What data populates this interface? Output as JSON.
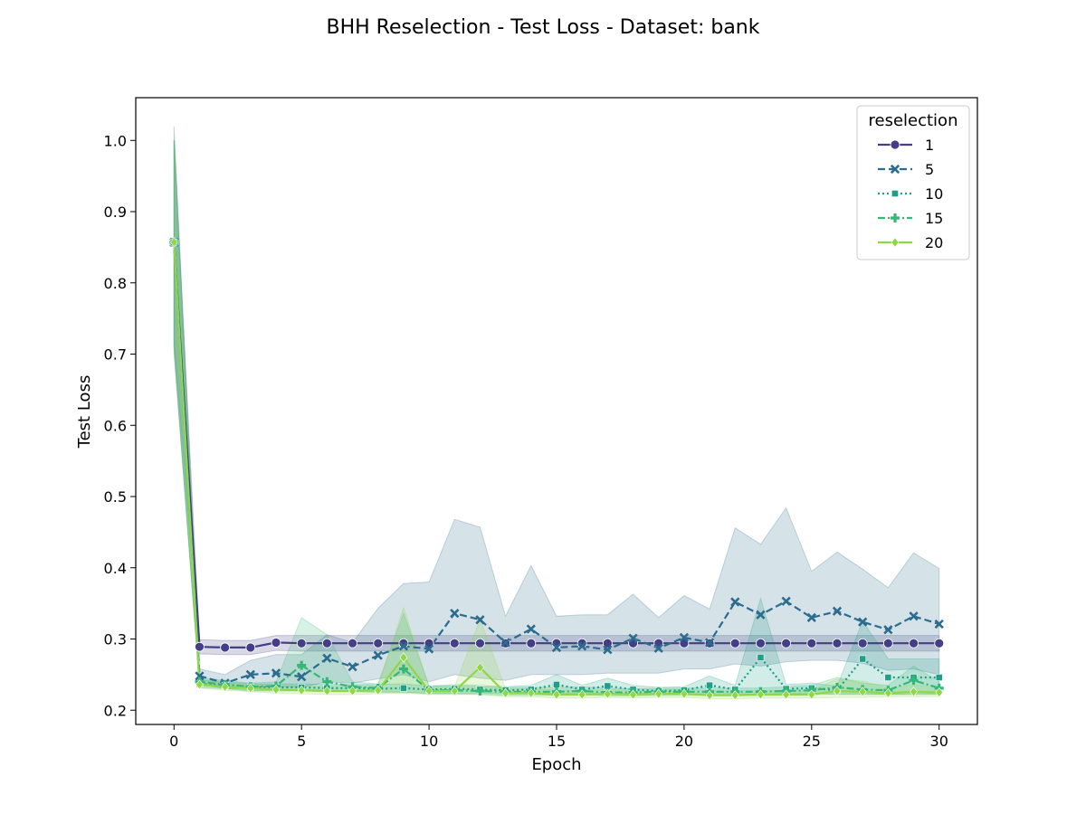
{
  "chart_data": {
    "type": "line",
    "title": "BHH Reselection - Test Loss - Dataset: bank",
    "xlabel": "Epoch",
    "ylabel": "Test Loss",
    "xlim": [
      -1.5,
      31.5
    ],
    "ylim": [
      0.18,
      1.06
    ],
    "xticks": [
      0,
      5,
      10,
      15,
      20,
      25,
      30
    ],
    "yticks": [
      0.2,
      0.3,
      0.4,
      0.5,
      0.6,
      0.7,
      0.8,
      0.9,
      1.0
    ],
    "ytick_labels": [
      "0.2",
      "0.3",
      "0.4",
      "0.5",
      "0.6",
      "0.7",
      "0.8",
      "0.9",
      "1.0"
    ],
    "grid": false,
    "legend": {
      "title": "reselection",
      "placement": "top-right"
    },
    "x": [
      0,
      1,
      2,
      3,
      4,
      5,
      6,
      7,
      8,
      9,
      10,
      11,
      12,
      13,
      14,
      15,
      16,
      17,
      18,
      19,
      20,
      21,
      22,
      23,
      24,
      25,
      26,
      27,
      28,
      29,
      30
    ],
    "series": [
      {
        "name": "1",
        "color": "#433e85",
        "dash": "solid",
        "marker": "circle",
        "values": [
          0.857,
          0.289,
          0.288,
          0.288,
          0.295,
          0.294,
          0.294,
          0.294,
          0.294,
          0.294,
          0.294,
          0.294,
          0.294,
          0.294,
          0.294,
          0.294,
          0.294,
          0.294,
          0.294,
          0.294,
          0.294,
          0.294,
          0.294,
          0.294,
          0.294,
          0.294,
          0.294,
          0.294,
          0.294,
          0.294,
          0.294
        ],
        "lower": [
          0.72,
          0.279,
          0.278,
          0.278,
          0.284,
          0.283,
          0.283,
          0.283,
          0.283,
          0.283,
          0.283,
          0.283,
          0.283,
          0.283,
          0.283,
          0.283,
          0.283,
          0.283,
          0.283,
          0.283,
          0.283,
          0.283,
          0.283,
          0.283,
          0.283,
          0.283,
          0.283,
          0.283,
          0.283,
          0.283,
          0.283
        ],
        "upper": [
          1.0,
          0.299,
          0.298,
          0.298,
          0.305,
          0.305,
          0.305,
          0.305,
          0.305,
          0.305,
          0.305,
          0.305,
          0.305,
          0.305,
          0.305,
          0.305,
          0.305,
          0.305,
          0.305,
          0.305,
          0.305,
          0.305,
          0.305,
          0.305,
          0.305,
          0.305,
          0.305,
          0.305,
          0.305,
          0.305,
          0.305
        ]
      },
      {
        "name": "5",
        "color": "#2c6c8e",
        "dash": "8,4",
        "marker": "x",
        "values": [
          0.857,
          0.248,
          0.238,
          0.25,
          0.252,
          0.247,
          0.273,
          0.261,
          0.277,
          0.29,
          0.286,
          0.336,
          0.327,
          0.295,
          0.314,
          0.288,
          0.29,
          0.285,
          0.301,
          0.287,
          0.302,
          0.295,
          0.352,
          0.334,
          0.353,
          0.33,
          0.339,
          0.324,
          0.313,
          0.332,
          0.321
        ],
        "lower": [
          0.7,
          0.238,
          0.23,
          0.232,
          0.233,
          0.232,
          0.24,
          0.238,
          0.244,
          0.25,
          0.24,
          0.25,
          0.245,
          0.242,
          0.25,
          0.25,
          0.25,
          0.252,
          0.252,
          0.252,
          0.258,
          0.258,
          0.265,
          0.262,
          0.268,
          0.27,
          0.27,
          0.266,
          0.256,
          0.258,
          0.25
        ],
        "upper": [
          1.02,
          0.258,
          0.25,
          0.27,
          0.278,
          0.278,
          0.306,
          0.295,
          0.343,
          0.378,
          0.38,
          0.468,
          0.457,
          0.332,
          0.403,
          0.332,
          0.334,
          0.334,
          0.363,
          0.33,
          0.361,
          0.342,
          0.456,
          0.433,
          0.484,
          0.395,
          0.422,
          0.398,
          0.372,
          0.421,
          0.399
        ]
      },
      {
        "name": "10",
        "color": "#1f9e89",
        "dash": "2,3",
        "marker": "square",
        "values": [
          0.857,
          0.237,
          0.235,
          0.232,
          0.232,
          0.232,
          0.231,
          0.231,
          0.23,
          0.231,
          0.229,
          0.23,
          0.229,
          0.228,
          0.229,
          0.236,
          0.229,
          0.234,
          0.229,
          0.227,
          0.228,
          0.235,
          0.229,
          0.274,
          0.23,
          0.231,
          0.228,
          0.272,
          0.246,
          0.246,
          0.246
        ],
        "lower": [
          0.71,
          0.232,
          0.23,
          0.227,
          0.227,
          0.227,
          0.226,
          0.226,
          0.225,
          0.225,
          0.224,
          0.224,
          0.224,
          0.223,
          0.223,
          0.224,
          0.223,
          0.223,
          0.223,
          0.222,
          0.223,
          0.223,
          0.223,
          0.222,
          0.224,
          0.224,
          0.222,
          0.222,
          0.222,
          0.222,
          0.222
        ],
        "upper": [
          1.0,
          0.243,
          0.24,
          0.237,
          0.237,
          0.237,
          0.236,
          0.236,
          0.236,
          0.237,
          0.234,
          0.236,
          0.235,
          0.233,
          0.235,
          0.25,
          0.235,
          0.245,
          0.235,
          0.232,
          0.233,
          0.248,
          0.235,
          0.357,
          0.236,
          0.238,
          0.234,
          0.325,
          0.272,
          0.272,
          0.272
        ]
      },
      {
        "name": "15",
        "color": "#35b779",
        "dash": "8,3,2,3",
        "marker": "plus",
        "values": [
          0.857,
          0.24,
          0.236,
          0.233,
          0.234,
          0.263,
          0.24,
          0.233,
          0.231,
          0.258,
          0.228,
          0.228,
          0.227,
          0.226,
          0.226,
          0.226,
          0.227,
          0.225,
          0.225,
          0.226,
          0.226,
          0.226,
          0.226,
          0.226,
          0.227,
          0.228,
          0.232,
          0.229,
          0.228,
          0.242,
          0.231
        ],
        "lower": [
          0.71,
          0.235,
          0.231,
          0.228,
          0.228,
          0.228,
          0.228,
          0.227,
          0.226,
          0.226,
          0.223,
          0.223,
          0.222,
          0.221,
          0.221,
          0.221,
          0.222,
          0.22,
          0.22,
          0.221,
          0.221,
          0.221,
          0.221,
          0.221,
          0.222,
          0.222,
          0.223,
          0.223,
          0.222,
          0.223,
          0.223
        ],
        "upper": [
          1.0,
          0.246,
          0.242,
          0.238,
          0.24,
          0.33,
          0.306,
          0.24,
          0.237,
          0.336,
          0.234,
          0.234,
          0.233,
          0.232,
          0.232,
          0.232,
          0.233,
          0.231,
          0.23,
          0.231,
          0.231,
          0.231,
          0.231,
          0.231,
          0.233,
          0.235,
          0.246,
          0.238,
          0.235,
          0.262,
          0.24
        ]
      },
      {
        "name": "20",
        "color": "#8fd744",
        "dash": "solid",
        "marker": "diamond",
        "values": [
          0.857,
          0.236,
          0.233,
          0.231,
          0.229,
          0.228,
          0.227,
          0.227,
          0.228,
          0.274,
          0.227,
          0.227,
          0.26,
          0.224,
          0.224,
          0.222,
          0.222,
          0.223,
          0.222,
          0.223,
          0.223,
          0.221,
          0.221,
          0.222,
          0.222,
          0.222,
          0.227,
          0.226,
          0.224,
          0.226,
          0.225
        ],
        "lower": [
          0.71,
          0.231,
          0.228,
          0.226,
          0.224,
          0.223,
          0.222,
          0.222,
          0.223,
          0.224,
          0.222,
          0.222,
          0.222,
          0.219,
          0.219,
          0.217,
          0.217,
          0.218,
          0.217,
          0.218,
          0.218,
          0.216,
          0.216,
          0.217,
          0.217,
          0.217,
          0.218,
          0.218,
          0.219,
          0.219,
          0.219
        ],
        "upper": [
          1.0,
          0.242,
          0.239,
          0.236,
          0.234,
          0.234,
          0.233,
          0.233,
          0.234,
          0.344,
          0.233,
          0.233,
          0.328,
          0.23,
          0.23,
          0.228,
          0.228,
          0.229,
          0.228,
          0.229,
          0.229,
          0.227,
          0.227,
          0.228,
          0.228,
          0.228,
          0.244,
          0.241,
          0.231,
          0.236,
          0.232
        ]
      }
    ]
  }
}
